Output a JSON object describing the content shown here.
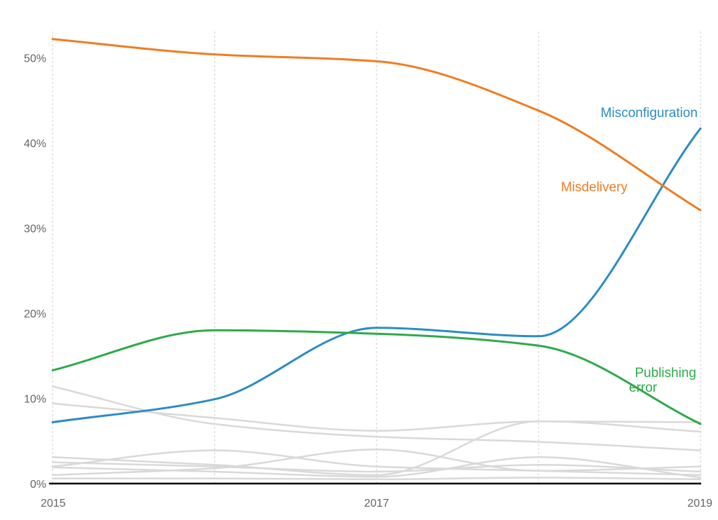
{
  "chart_data": {
    "type": "line",
    "title": "",
    "xlabel": "",
    "ylabel": "",
    "x": [
      2015,
      2016,
      2017,
      2018,
      2019
    ],
    "x_tick_labels": [
      "2015",
      "2017",
      "2019"
    ],
    "y_tick_labels": [
      "0%",
      "10%",
      "20%",
      "30%",
      "40%",
      "50%"
    ],
    "ylim": [
      0,
      52
    ],
    "grid": "vertical-dashed",
    "colors": {
      "misconfiguration": "#2b8cc4",
      "misdelivery": "#ef7d22",
      "publishing_error": "#2eaa4a",
      "other": "#d9d9d9",
      "baseline": "#000000",
      "grid": "#cccccc"
    },
    "series": [
      {
        "name": "Misconfiguration",
        "label": "Misconfiguration",
        "color": "#2b8cc4",
        "highlight": true,
        "values": [
          7.2,
          9.9,
          18.3,
          17.3,
          41.7
        ]
      },
      {
        "name": "Misdelivery",
        "label": "Misdelivery",
        "color": "#ef7d22",
        "highlight": true,
        "values": [
          52.2,
          50.4,
          49.6,
          43.8,
          32.1
        ]
      },
      {
        "name": "Publishing error",
        "label_lines": [
          "Publishing",
          "error"
        ],
        "color": "#2eaa4a",
        "highlight": true,
        "values": [
          13.3,
          18.0,
          17.6,
          16.2,
          7.0
        ]
      },
      {
        "color": "#d9d9d9",
        "highlight": false,
        "values": [
          11.4,
          7.0,
          5.5,
          4.9,
          3.9
        ]
      },
      {
        "color": "#d9d9d9",
        "highlight": false,
        "values": [
          9.4,
          7.7,
          6.2,
          7.3,
          7.2
        ]
      },
      {
        "color": "#d9d9d9",
        "highlight": false,
        "values": [
          3.1,
          2.2,
          1.0,
          7.3,
          6.1
        ]
      },
      {
        "color": "#d9d9d9",
        "highlight": false,
        "values": [
          2.0,
          3.9,
          2.0,
          1.5,
          1.0
        ]
      },
      {
        "color": "#d9d9d9",
        "highlight": false,
        "values": [
          1.0,
          1.8,
          4.0,
          1.5,
          2.0
        ]
      },
      {
        "color": "#d9d9d9",
        "highlight": false,
        "values": [
          2.5,
          2.0,
          1.4,
          2.2,
          1.4
        ]
      },
      {
        "color": "#d9d9d9",
        "highlight": false,
        "values": [
          1.9,
          1.4,
          0.8,
          3.1,
          0.7
        ]
      },
      {
        "color": "#d9d9d9",
        "highlight": false,
        "values": [
          0.6,
          0.6,
          0.5,
          0.7,
          0.5
        ]
      }
    ]
  }
}
